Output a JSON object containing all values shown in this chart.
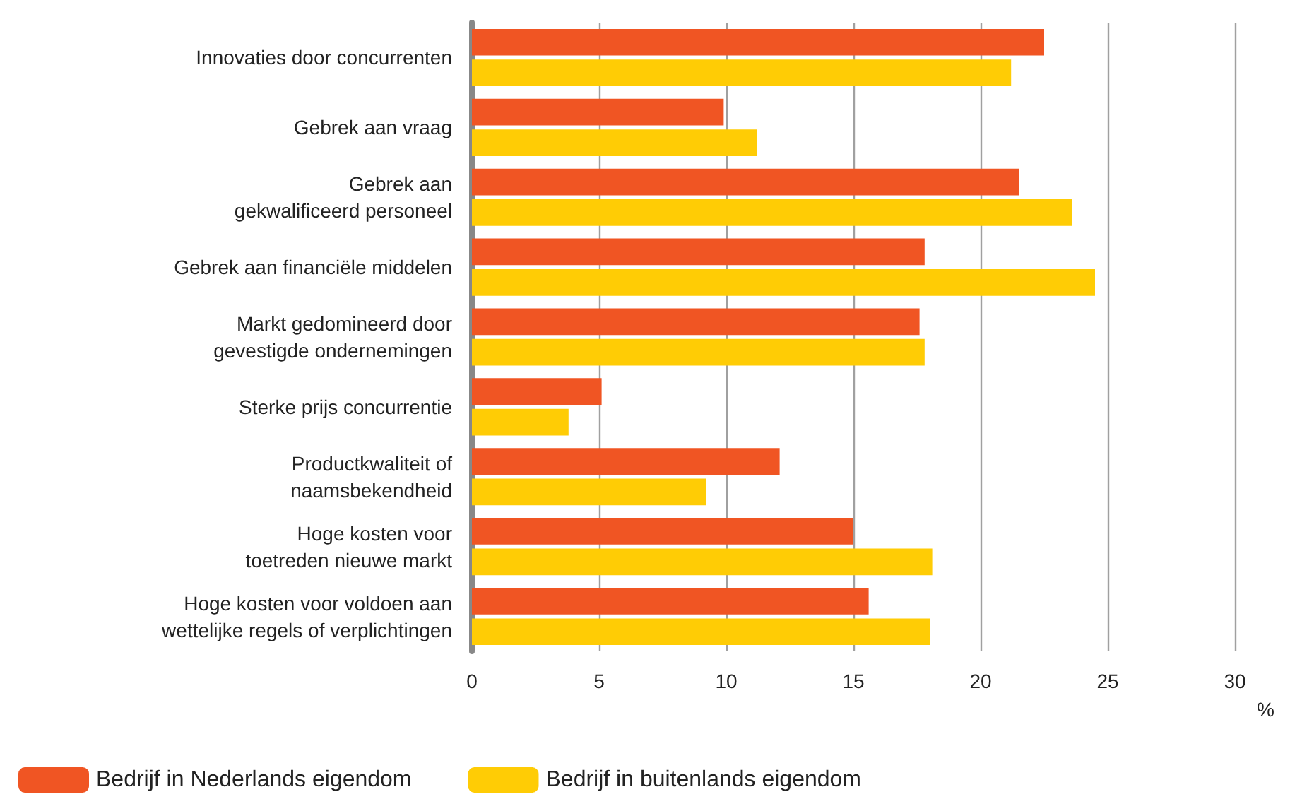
{
  "chart_data": {
    "type": "bar",
    "orientation": "horizontal",
    "xlabel": "%",
    "categories": [
      "Innovaties door concurrenten",
      "Gebrek aan vraag",
      "Gebrek aan\ngekwalificeerd personeel",
      "Gebrek aan financiële middelen",
      "Markt gedomineerd door\ngevestigde ondernemingen",
      "Sterke prijs concurrentie",
      "Productkwaliteit of\nnaamsbekendheid",
      "Hoge kosten voor\ntoetreden nieuwe markt",
      "Hoge kosten voor voldoen aan\nwettelijke regels of verplichtingen"
    ],
    "series": [
      {
        "name": "Bedrijf in Nederlands eigendom",
        "color": "#f05523",
        "values": [
          22.5,
          9.9,
          21.5,
          17.8,
          17.6,
          5.1,
          12.1,
          15.0,
          15.6
        ]
      },
      {
        "name": "Bedrijf in buitenlands eigendom",
        "color": "#ffcc05",
        "values": [
          21.2,
          11.2,
          23.6,
          24.5,
          17.8,
          3.8,
          9.2,
          18.1,
          18.0
        ]
      }
    ],
    "xlim": [
      0,
      30
    ],
    "xticks": [
      0,
      5,
      10,
      15,
      20,
      25,
      30
    ],
    "grid": "x",
    "legend": "bottom left"
  }
}
